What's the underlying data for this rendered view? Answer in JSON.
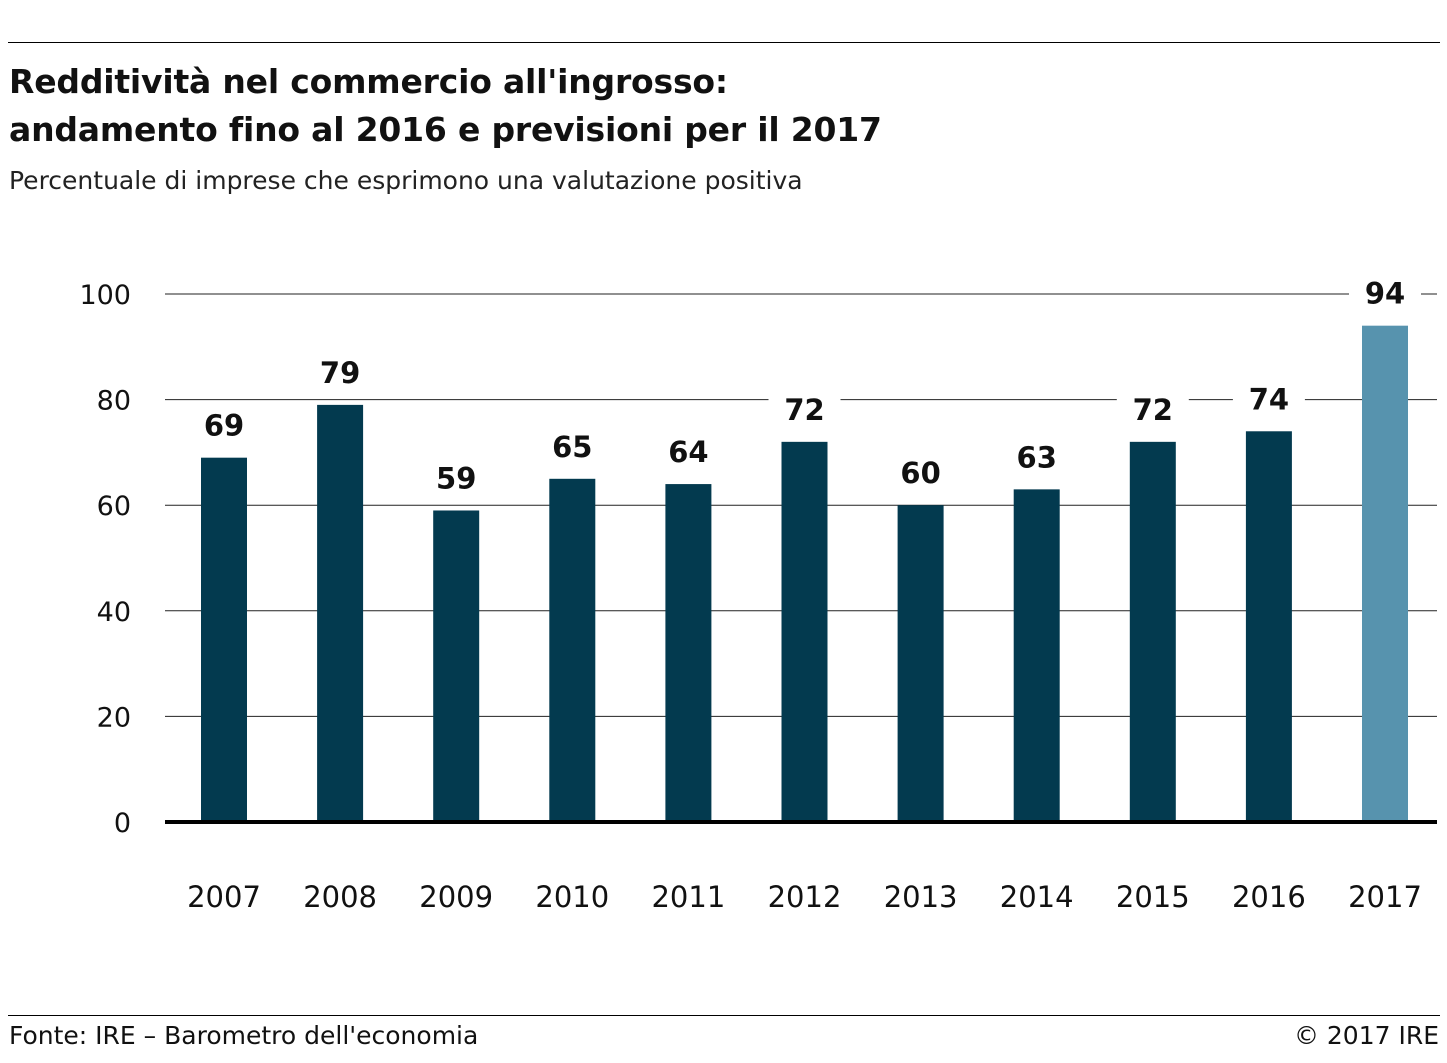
{
  "header": {
    "title_line1": "Redditività nel commercio all'ingrosso:",
    "title_line2": "andamento fino al 2016 e previsioni per il 2017",
    "subtitle": "Percentuale di imprese che esprimono una valutazione positiva"
  },
  "footer": {
    "source": "Fonte: IRE – Barometro dell'economia",
    "copyright": "© 2017 IRE"
  },
  "chart_data": {
    "type": "bar",
    "title": "Redditività nel commercio all'ingrosso: andamento fino al 2016 e previsioni per il 2017",
    "subtitle": "Percentuale di imprese che esprimono una valutazione positiva",
    "categories": [
      "2007",
      "2008",
      "2009",
      "2010",
      "2011",
      "2012",
      "2013",
      "2014",
      "2015",
      "2016",
      "2017"
    ],
    "values": [
      69,
      79,
      59,
      65,
      64,
      72,
      60,
      63,
      72,
      74,
      94
    ],
    "data_labels": [
      "69",
      "79",
      "59",
      "65",
      "64",
      "72",
      "60",
      "63",
      "72",
      "74",
      "94"
    ],
    "ylim": [
      0,
      100
    ],
    "yticks": [
      0,
      20,
      40,
      60,
      80,
      100
    ],
    "grid": true,
    "colors": {
      "actual": "#033a4f",
      "forecast": "#5793ae"
    },
    "highlighted_category": "2017"
  }
}
